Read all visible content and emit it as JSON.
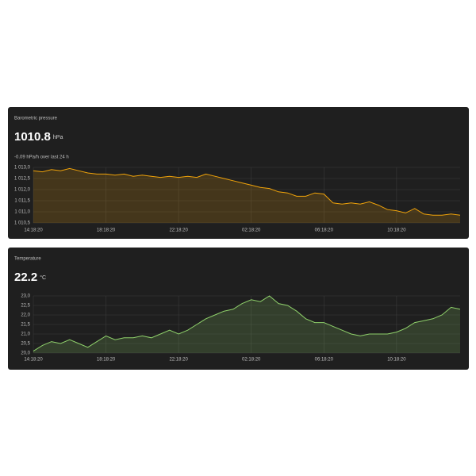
{
  "chart_data": [
    {
      "type": "area",
      "title": "Barometric pressure",
      "current_value": 1010.8,
      "unit": "hPa",
      "subtitle": "-0.09 hPa/h over last 24 h",
      "x": [
        "14:18:20",
        "14:48:20",
        "15:18:20",
        "15:48:20",
        "16:18:20",
        "16:48:20",
        "17:18:20",
        "17:48:20",
        "18:18:20",
        "18:48:20",
        "19:18:20",
        "19:48:20",
        "20:18:20",
        "20:48:20",
        "21:18:20",
        "21:48:20",
        "22:18:20",
        "22:48:20",
        "23:18:20",
        "23:48:20",
        "00:18:20",
        "00:48:20",
        "01:18:20",
        "01:48:20",
        "02:18:20",
        "02:48:20",
        "03:18:20",
        "03:48:20",
        "04:18:20",
        "04:48:20",
        "05:18:20",
        "05:48:20",
        "06:18:20",
        "06:48:20",
        "07:18:20",
        "07:48:20",
        "08:18:20",
        "08:48:20",
        "09:18:20",
        "09:48:20",
        "10:18:20",
        "10:48:20",
        "11:18:20",
        "11:48:20",
        "12:18:20",
        "12:48:20",
        "13:18:20",
        "13:48:20"
      ],
      "xlim": [
        "14:18:20",
        "13:48:20"
      ],
      "xticks": [
        "14:18:20",
        "18:18:20",
        "22:18:20",
        "02:18:20",
        "06:18:20",
        "10:18:20"
      ],
      "ylim": [
        1010.5,
        1013.0
      ],
      "yticks": [
        {
          "value": 1010.5,
          "label": "1 010,5"
        },
        {
          "value": 1011.0,
          "label": "1 011,0"
        },
        {
          "value": 1011.5,
          "label": "1 011,5"
        },
        {
          "value": 1012.0,
          "label": "1 012,0"
        },
        {
          "value": 1012.5,
          "label": "1 012,5"
        },
        {
          "value": 1013.0,
          "label": "1 013,0"
        }
      ],
      "grid": true,
      "series": [
        {
          "color": "#f0a30a",
          "values": [
            1012.85,
            1012.8,
            1012.9,
            1012.85,
            1012.95,
            1012.85,
            1012.75,
            1012.7,
            1012.7,
            1012.65,
            1012.7,
            1012.6,
            1012.65,
            1012.6,
            1012.55,
            1012.6,
            1012.55,
            1012.6,
            1012.55,
            1012.7,
            1012.6,
            1012.5,
            1012.4,
            1012.3,
            1012.2,
            1012.1,
            1012.05,
            1011.9,
            1011.85,
            1011.7,
            1011.7,
            1011.85,
            1011.8,
            1011.4,
            1011.35,
            1011.4,
            1011.35,
            1011.45,
            1011.3,
            1011.1,
            1011.05,
            1010.95,
            1011.15,
            1010.9,
            1010.85,
            1010.85,
            1010.9,
            1010.85
          ]
        }
      ]
    },
    {
      "type": "area",
      "title": "Temperature",
      "current_value": 22.2,
      "unit": "°C",
      "x": [
        "14:18:20",
        "14:48:20",
        "15:18:20",
        "15:48:20",
        "16:18:20",
        "16:48:20",
        "17:18:20",
        "17:48:20",
        "18:18:20",
        "18:48:20",
        "19:18:20",
        "19:48:20",
        "20:18:20",
        "20:48:20",
        "21:18:20",
        "21:48:20",
        "22:18:20",
        "22:48:20",
        "23:18:20",
        "23:48:20",
        "00:18:20",
        "00:48:20",
        "01:18:20",
        "01:48:20",
        "02:18:20",
        "02:48:20",
        "03:18:20",
        "03:48:20",
        "04:18:20",
        "04:48:20",
        "05:18:20",
        "05:48:20",
        "06:18:20",
        "06:48:20",
        "07:18:20",
        "07:48:20",
        "08:18:20",
        "08:48:20",
        "09:18:20",
        "09:48:20",
        "10:18:20",
        "10:48:20",
        "11:18:20",
        "11:48:20",
        "12:18:20",
        "12:48:20",
        "13:18:20",
        "13:48:20"
      ],
      "xlim": [
        "14:18:20",
        "13:48:20"
      ],
      "xticks": [
        "14:18:20",
        "18:18:20",
        "22:18:20",
        "02:18:20",
        "06:18:20",
        "10:18:20"
      ],
      "ylim": [
        20.0,
        23.0
      ],
      "yticks": [
        {
          "value": 20.0,
          "label": "20,0"
        },
        {
          "value": 20.5,
          "label": "20,5"
        },
        {
          "value": 21.0,
          "label": "21,0"
        },
        {
          "value": 21.5,
          "label": "21,5"
        },
        {
          "value": 22.0,
          "label": "22,0"
        },
        {
          "value": 22.5,
          "label": "22,5"
        },
        {
          "value": 23.0,
          "label": "23,0"
        }
      ],
      "grid": true,
      "series": [
        {
          "color": "#8fd16b",
          "values": [
            20.1,
            20.4,
            20.6,
            20.5,
            20.7,
            20.5,
            20.3,
            20.6,
            20.9,
            20.7,
            20.8,
            20.8,
            20.9,
            20.8,
            21.0,
            21.2,
            21.0,
            21.2,
            21.5,
            21.8,
            22.0,
            22.2,
            22.3,
            22.6,
            22.8,
            22.7,
            23.0,
            22.6,
            22.5,
            22.2,
            21.8,
            21.6,
            21.6,
            21.4,
            21.2,
            21.0,
            20.9,
            21.0,
            21.0,
            21.0,
            21.1,
            21.3,
            21.6,
            21.7,
            21.8,
            22.0,
            22.4,
            22.3
          ]
        }
      ]
    }
  ]
}
